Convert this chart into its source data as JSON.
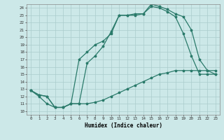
{
  "xlabel": "Humidex (Indice chaleur)",
  "bg_color": "#cce8e8",
  "grid_color": "#aacccc",
  "line_color": "#2a7a6a",
  "xlim": [
    -0.5,
    23.5
  ],
  "ylim": [
    9.5,
    24.5
  ],
  "xticks": [
    0,
    1,
    2,
    3,
    4,
    5,
    6,
    7,
    8,
    9,
    10,
    11,
    12,
    13,
    14,
    15,
    16,
    17,
    18,
    19,
    20,
    21,
    22,
    23
  ],
  "yticks": [
    10,
    11,
    12,
    13,
    14,
    15,
    16,
    17,
    18,
    19,
    20,
    21,
    22,
    23,
    24
  ],
  "line1_x": [
    0,
    1,
    2,
    3,
    4,
    5,
    6,
    7,
    8,
    9,
    10,
    11,
    12,
    13,
    14,
    15,
    16,
    17,
    18,
    19,
    20,
    21,
    22,
    23
  ],
  "line1_y": [
    12.8,
    12.0,
    11.0,
    10.5,
    10.5,
    11.0,
    11.0,
    11.0,
    11.2,
    11.5,
    12.0,
    12.5,
    13.0,
    13.5,
    14.0,
    14.5,
    15.0,
    15.2,
    15.5,
    15.5,
    15.5,
    15.5,
    15.5,
    15.5
  ],
  "line2_x": [
    0,
    1,
    2,
    3,
    4,
    5,
    6,
    7,
    8,
    9,
    10,
    11,
    12,
    13,
    14,
    15,
    16,
    17,
    18,
    19,
    20,
    21,
    22,
    23
  ],
  "line2_y": [
    12.8,
    12.2,
    12.0,
    10.5,
    10.5,
    11.0,
    17.0,
    18.0,
    19.0,
    19.5,
    20.5,
    23.0,
    23.0,
    23.2,
    23.2,
    24.2,
    24.0,
    23.5,
    22.8,
    20.5,
    17.5,
    15.0,
    15.0,
    15.0
  ],
  "line3_x": [
    0,
    1,
    2,
    3,
    4,
    5,
    6,
    7,
    8,
    9,
    10,
    11,
    12,
    13,
    14,
    15,
    16,
    17,
    18,
    19,
    20,
    21,
    22,
    23
  ],
  "line3_y": [
    12.8,
    12.2,
    12.0,
    10.5,
    10.5,
    11.0,
    11.0,
    16.5,
    17.5,
    18.8,
    20.8,
    23.0,
    23.0,
    23.0,
    23.2,
    24.5,
    24.2,
    23.8,
    23.2,
    22.8,
    21.0,
    17.0,
    15.5,
    15.0
  ]
}
